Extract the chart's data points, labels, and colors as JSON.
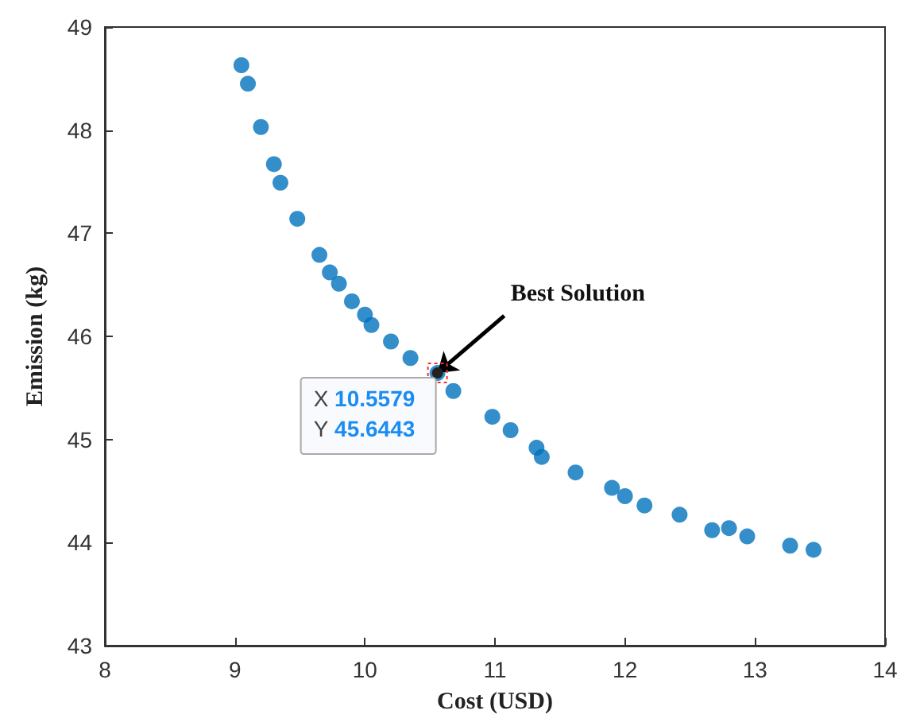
{
  "chart_data": {
    "type": "scatter",
    "xlabel": "Cost (USD)",
    "ylabel": "Emission (kg)",
    "x": [
      9.05,
      9.1,
      9.2,
      9.3,
      9.35,
      9.48,
      9.65,
      9.73,
      9.8,
      9.9,
      10.0,
      10.05,
      10.2,
      10.35,
      10.5579,
      10.68,
      10.98,
      11.12,
      11.32,
      11.36,
      11.62,
      11.9,
      12.0,
      12.15,
      12.42,
      12.67,
      12.8,
      12.94,
      13.27,
      13.45
    ],
    "values": [
      48.63,
      48.45,
      48.03,
      47.67,
      47.49,
      47.14,
      46.79,
      46.62,
      46.51,
      46.34,
      46.21,
      46.11,
      45.95,
      45.79,
      45.6443,
      45.47,
      45.22,
      45.09,
      44.92,
      44.83,
      44.68,
      44.53,
      44.45,
      44.36,
      44.27,
      44.12,
      44.14,
      44.06,
      43.97,
      43.93
    ],
    "color": "#0072bd",
    "marker": "circle",
    "grid": false,
    "xlim": [
      8,
      14
    ],
    "xticks": [
      8,
      9,
      10,
      11,
      12,
      13,
      14
    ],
    "ylim": [
      43,
      49
    ],
    "yticks": [
      43,
      44,
      45,
      46,
      47,
      48,
      49
    ],
    "annotations": [
      {
        "text": "Best Solution",
        "x": 10.5579,
        "y": 45.6443
      },
      "X 10.5579",
      "Y 45.6443"
    ]
  }
}
